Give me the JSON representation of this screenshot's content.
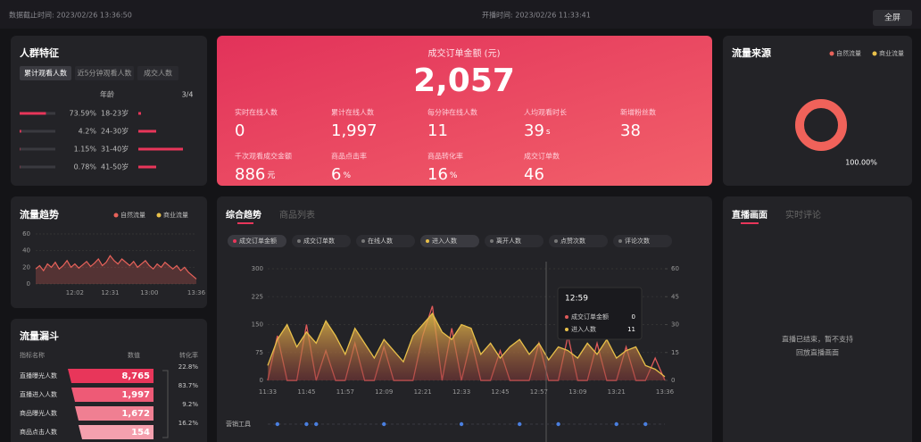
{
  "header": {
    "data_time": "数据截止时间: 2023/02/26 13:36:50",
    "start_time": "开播时间: 2023/02/26 11:33:41",
    "fullscreen": "全屏"
  },
  "audience": {
    "title": "人群特征",
    "tabs": [
      "累计观看人数",
      "近5分钟观看人数",
      "成交人数"
    ],
    "column": "年龄",
    "pager": "3/4",
    "shares": [
      73.59,
      4.2,
      1.15,
      0.78
    ],
    "share_labels": [
      "73.59%",
      "4.2%",
      "1.15%",
      "0.78%"
    ],
    "ages": [
      "18-23岁",
      "24-30岁",
      "31-40岁",
      "41-50岁"
    ],
    "others": [
      3,
      20,
      50,
      20
    ]
  },
  "kpi": {
    "main_label": "成交订单金额 (元)",
    "main_value": "2,057",
    "metrics": [
      {
        "label": "实时在线人数",
        "value": "0"
      },
      {
        "label": "累计在线人数",
        "value": "1,997"
      },
      {
        "label": "每分钟在线人数",
        "value": "11"
      },
      {
        "label": "人均观看时长",
        "value": "39",
        "unit": "s"
      },
      {
        "label": "新增粉丝数",
        "value": "38"
      },
      {
        "label": "千次观看成交金额",
        "value": "886",
        "unit": "元"
      },
      {
        "label": "商品点击率",
        "value": "6",
        "unit": "%"
      },
      {
        "label": "商品转化率",
        "value": "16",
        "unit": "%"
      },
      {
        "label": "成交订单数",
        "value": "46"
      }
    ]
  },
  "traffic_source": {
    "title": "流量来源",
    "legend": [
      "自然流量",
      "商业流量"
    ],
    "donut": {
      "value": 100,
      "label": "100.00%",
      "color": "#f0625a"
    }
  },
  "trend": {
    "title": "流量趋势",
    "legend": [
      "自然流量",
      "商业流量"
    ],
    "chart": {
      "type": "line",
      "color": "#e8625a",
      "categories": [
        null,
        null,
        null,
        null,
        null,
        null,
        null,
        null,
        null,
        null,
        "12:02",
        null,
        null,
        null,
        null,
        null,
        null,
        null,
        null,
        "12:31",
        null,
        null,
        null,
        null,
        null,
        null,
        null,
        null,
        null,
        "13:00",
        null,
        null,
        null,
        null,
        null,
        null,
        null,
        null,
        null,
        null,
        null,
        "13:36"
      ],
      "values": [
        18,
        22,
        16,
        24,
        20,
        26,
        18,
        22,
        28,
        20,
        24,
        19,
        23,
        27,
        21,
        25,
        30,
        22,
        26,
        34,
        28,
        24,
        30,
        26,
        22,
        27,
        20,
        24,
        28,
        22,
        18,
        24,
        20,
        26,
        22,
        18,
        22,
        16,
        20,
        14,
        10,
        6
      ],
      "ylim": [
        0,
        60
      ],
      "yticks": [
        0,
        20,
        40,
        60
      ]
    }
  },
  "funnel": {
    "title": "流量漏斗",
    "headers": [
      "指标名称",
      "数值",
      "转化率"
    ],
    "names": [
      "直播曝光人数",
      "直播进入人数",
      "商品曝光人数",
      "商品点击人数"
    ],
    "values": [
      8765,
      1997,
      1672,
      154
    ],
    "value_labels": [
      "8,765",
      "1,997",
      "1,672",
      "154"
    ],
    "rates": [
      "22.8%",
      "83.7%",
      "9.2%",
      "16.2%"
    ]
  },
  "main": {
    "tabs": [
      "综合趋势",
      "商品列表"
    ],
    "chips": [
      "成交订单金额",
      "成交订单数",
      "在线人数",
      "进入人数",
      "离开人数",
      "点赞次数",
      "评论次数"
    ],
    "chart": {
      "type": "line",
      "categories": [
        "11:33",
        null,
        null,
        null,
        "11:45",
        null,
        null,
        null,
        "11:57",
        null,
        null,
        null,
        "12:09",
        null,
        null,
        null,
        "12:21",
        null,
        null,
        null,
        "12:33",
        null,
        null,
        null,
        "12:45",
        null,
        null,
        null,
        "12:57",
        null,
        null,
        null,
        "13:09",
        null,
        null,
        null,
        "13:21",
        null,
        null,
        null,
        null,
        "13:36"
      ],
      "ylim": [
        0,
        300
      ],
      "yticks": [
        0,
        75,
        150,
        225,
        300
      ],
      "y2lim": [
        0,
        60
      ],
      "y2ticks": [
        0,
        15,
        30,
        45,
        60
      ],
      "series": [
        {
          "name": "成交订单金额",
          "color": "#e05a5a",
          "values": [
            0,
            120,
            0,
            0,
            150,
            0,
            80,
            0,
            0,
            100,
            0,
            0,
            90,
            0,
            0,
            0,
            120,
            200,
            0,
            140,
            0,
            110,
            0,
            0,
            80,
            0,
            0,
            0,
            100,
            0,
            0,
            120,
            0,
            0,
            100,
            0,
            0,
            90,
            0,
            0,
            60,
            0
          ]
        },
        {
          "name": "进入人数",
          "color": "#e8c04a",
          "axis": "y2",
          "values": [
            8,
            22,
            30,
            18,
            26,
            20,
            32,
            24,
            14,
            28,
            20,
            12,
            22,
            16,
            10,
            24,
            30,
            36,
            26,
            22,
            30,
            28,
            14,
            20,
            12,
            18,
            22,
            14,
            20,
            11,
            18,
            16,
            12,
            20,
            14,
            22,
            12,
            16,
            18,
            8,
            6,
            2
          ]
        }
      ]
    },
    "tooltip": {
      "time": "12:59",
      "rows": [
        {
          "name": "成交订单金额",
          "value": "0"
        },
        {
          "name": "进入人数",
          "value": "11"
        }
      ]
    },
    "marketing": "营销工具"
  },
  "live": {
    "tabs": [
      "直播画面",
      "实时评论"
    ],
    "message": [
      "直播已结束，暂不支持",
      "回放直播画面"
    ]
  }
}
